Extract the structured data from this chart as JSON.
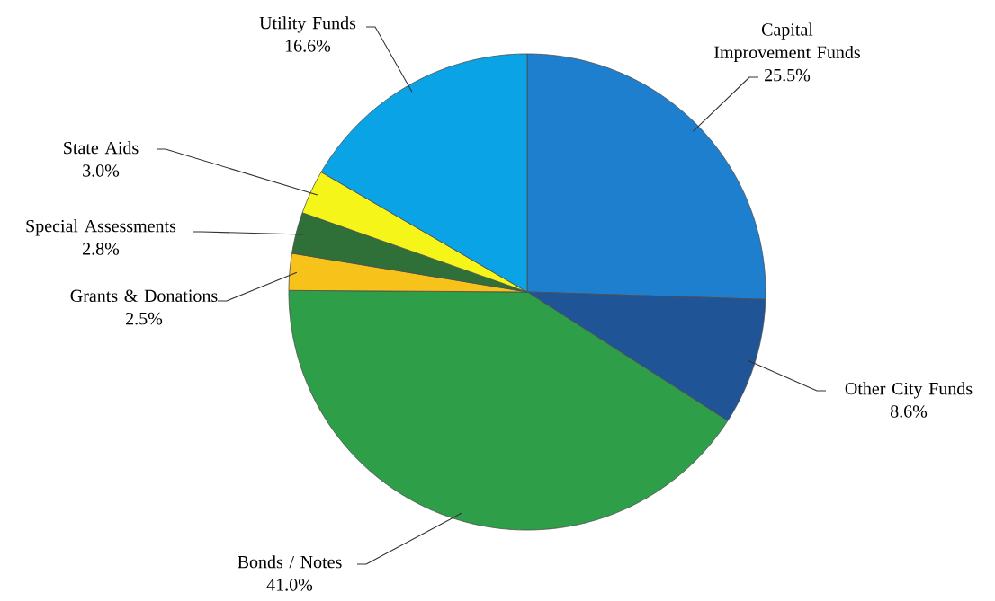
{
  "chart_data": {
    "type": "pie",
    "categories": [
      "Capital Improvement Funds",
      "Other City Funds",
      "Bonds / Notes",
      "Grants & Donations",
      "Special Assessments",
      "State Aids",
      "Utility Funds"
    ],
    "values": [
      25.5,
      8.6,
      41.0,
      2.5,
      2.8,
      3.0,
      16.6
    ],
    "value_labels": [
      "25.5%",
      "8.6%",
      "41.0%",
      "2.5%",
      "2.8%",
      "3.0%",
      "16.6%"
    ],
    "colors": [
      "#1f7fcf",
      "#1f5497",
      "#2e9e48",
      "#f7c21a",
      "#2f7038",
      "#f5f51a",
      "#0aa3e6"
    ]
  }
}
